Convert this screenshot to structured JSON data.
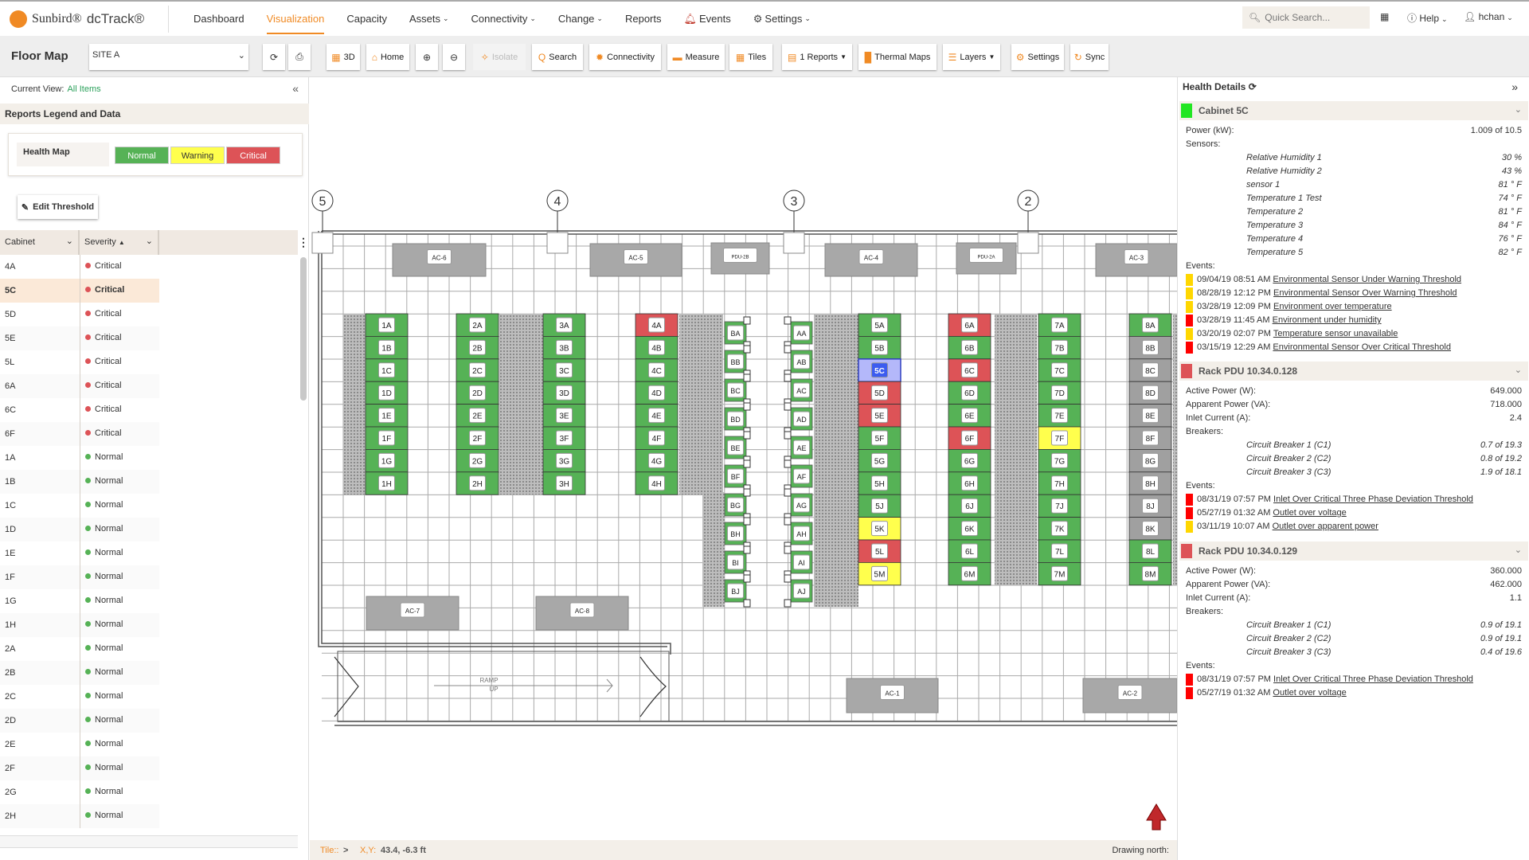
{
  "app": {
    "brand": "Sunbird®",
    "product": "dcTrack®"
  },
  "nav": {
    "items": [
      {
        "label": "Dashboard"
      },
      {
        "label": "Visualization",
        "active": true
      },
      {
        "label": "Capacity"
      },
      {
        "label": "Assets",
        "dropdown": true
      },
      {
        "label": "Connectivity",
        "dropdown": true
      },
      {
        "label": "Change",
        "dropdown": true
      },
      {
        "label": "Reports"
      },
      {
        "label": "Events",
        "icon": "bell-icon"
      },
      {
        "label": "Settings",
        "icon": "gear-icon",
        "dropdown": true
      }
    ],
    "quick_search_placeholder": "Quick Search...",
    "help": "Help",
    "user": "hchan"
  },
  "toolbar": {
    "title": "Floor Map",
    "site": "SITE A",
    "buttons": [
      {
        "label": "",
        "icon": "refresh-icon"
      },
      {
        "label": "",
        "icon": "print-icon"
      },
      {
        "label": "3D",
        "icon": "cube-icon"
      },
      {
        "label": "Home",
        "icon": "home-icon"
      },
      {
        "label": "",
        "icon": "zoom-in-icon"
      },
      {
        "label": "",
        "icon": "zoom-out-icon"
      },
      {
        "label": "Isolate",
        "icon": "isolate-icon",
        "disabled": true
      },
      {
        "label": "Search",
        "icon": "search-icon"
      },
      {
        "label": "Connectivity",
        "icon": "connectivity-icon"
      },
      {
        "label": "Measure",
        "icon": "measure-icon"
      },
      {
        "label": "Tiles",
        "icon": "tiles-icon"
      },
      {
        "label": "1 Reports",
        "icon": "report-icon",
        "dropdown": true
      },
      {
        "label": "Thermal Maps",
        "icon": "thermal-icon"
      },
      {
        "label": "Layers",
        "icon": "layers-icon",
        "dropdown": true
      },
      {
        "label": "Settings",
        "icon": "gear-icon"
      },
      {
        "label": "Sync",
        "icon": "sync-icon"
      }
    ]
  },
  "left": {
    "current_view_label": "Current View:",
    "current_view": "All Items",
    "legend_title": "Reports Legend and Data",
    "health_map": "Health Map",
    "legend": [
      {
        "label": "Normal",
        "color": "#56b256"
      },
      {
        "label": "Warning",
        "color": "#ffff4d"
      },
      {
        "label": "Critical",
        "color": "#dd5357"
      }
    ],
    "edit_threshold": "Edit Threshold",
    "columns": [
      "Cabinet",
      "Severity"
    ],
    "rows": [
      [
        "4A",
        "Critical"
      ],
      [
        "5C",
        "Critical"
      ],
      [
        "5D",
        "Critical"
      ],
      [
        "5E",
        "Critical"
      ],
      [
        "5L",
        "Critical"
      ],
      [
        "6A",
        "Critical"
      ],
      [
        "6C",
        "Critical"
      ],
      [
        "6F",
        "Critical"
      ],
      [
        "1A",
        "Normal"
      ],
      [
        "1B",
        "Normal"
      ],
      [
        "1C",
        "Normal"
      ],
      [
        "1D",
        "Normal"
      ],
      [
        "1E",
        "Normal"
      ],
      [
        "1F",
        "Normal"
      ],
      [
        "1G",
        "Normal"
      ],
      [
        "1H",
        "Normal"
      ],
      [
        "2A",
        "Normal"
      ],
      [
        "2B",
        "Normal"
      ],
      [
        "2C",
        "Normal"
      ],
      [
        "2D",
        "Normal"
      ],
      [
        "2E",
        "Normal"
      ],
      [
        "2F",
        "Normal"
      ],
      [
        "2G",
        "Normal"
      ],
      [
        "2H",
        "Normal"
      ]
    ],
    "selected_row": "5C"
  },
  "colors": {
    "normal": "#56b256",
    "critical": "#dd5357",
    "warning": "#ffff4d",
    "unknown": "#a0a0a0",
    "selected": "#b4b8fa",
    "accent": "#f08a24"
  },
  "floor_map": {
    "column_markers": [
      "5",
      "4",
      "3",
      "2"
    ],
    "cabinet_rows": [
      {
        "labels": [
          "1A",
          "1B",
          "1C",
          "1D",
          "1E",
          "1F",
          "1G",
          "1H"
        ],
        "status": [
          "normal",
          "normal",
          "normal",
          "normal",
          "normal",
          "normal",
          "normal",
          "normal"
        ]
      },
      {
        "labels": [
          "2A",
          "2B",
          "2C",
          "2D",
          "2E",
          "2F",
          "2G",
          "2H"
        ],
        "status": [
          "normal",
          "normal",
          "normal",
          "normal",
          "normal",
          "normal",
          "normal",
          "normal"
        ]
      },
      {
        "labels": [
          "3A",
          "3B",
          "3C",
          "3D",
          "3E",
          "3F",
          "3G",
          "3H"
        ],
        "status": [
          "normal",
          "normal",
          "normal",
          "normal",
          "normal",
          "normal",
          "normal",
          "normal"
        ]
      },
      {
        "labels": [
          "4A",
          "4B",
          "4C",
          "4D",
          "4E",
          "4F",
          "4G",
          "4H"
        ],
        "status": [
          "critical",
          "normal",
          "normal",
          "normal",
          "normal",
          "normal",
          "normal",
          "normal"
        ]
      },
      {
        "labels": [
          "5A",
          "5B",
          "5C",
          "5D",
          "5E",
          "5F",
          "5G",
          "5H",
          "5J",
          "5K",
          "5L",
          "5M"
        ],
        "status": [
          "normal",
          "normal",
          "selected",
          "critical",
          "critical",
          "normal",
          "normal",
          "normal",
          "normal",
          "warning",
          "critical",
          "warning"
        ]
      },
      {
        "labels": [
          "6A",
          "6B",
          "6C",
          "6D",
          "6E",
          "6F",
          "6G",
          "6H",
          "6J",
          "6K",
          "6L",
          "6M"
        ],
        "status": [
          "critical",
          "normal",
          "critical",
          "normal",
          "normal",
          "critical",
          "normal",
          "normal",
          "normal",
          "normal",
          "normal",
          "normal"
        ]
      },
      {
        "labels": [
          "7A",
          "7B",
          "7C",
          "7D",
          "7E",
          "7F",
          "7G",
          "7H",
          "7J",
          "7K",
          "7L",
          "7M"
        ],
        "status": [
          "normal",
          "normal",
          "normal",
          "normal",
          "normal",
          "warning",
          "normal",
          "normal",
          "normal",
          "normal",
          "normal",
          "normal"
        ]
      },
      {
        "labels": [
          "8A",
          "8B",
          "8C",
          "8D",
          "8E",
          "8F",
          "8G",
          "8H",
          "8J",
          "8K",
          "8L",
          "8M"
        ],
        "status": [
          "normal",
          "unknown",
          "unknown",
          "unknown",
          "unknown",
          "unknown",
          "unknown",
          "unknown",
          "unknown",
          "unknown",
          "normal",
          "normal"
        ]
      }
    ],
    "pdu_rows": [
      {
        "labels": [
          "BA",
          "BB",
          "BC",
          "BD",
          "BE",
          "BF",
          "BG",
          "BH",
          "BI",
          "BJ"
        ],
        "status": "normal"
      },
      {
        "labels": [
          "AA",
          "AB",
          "AC",
          "AD",
          "AE",
          "AF",
          "AG",
          "AH",
          "AI",
          "AJ"
        ],
        "status": "normal"
      }
    ],
    "units": [
      "AC-6",
      "AC-5",
      "PDU-2B",
      "AC-4",
      "PDU-2A",
      "AC-3",
      "AC-7",
      "AC-8",
      "AC-1",
      "AC-2"
    ],
    "ramp": [
      "RAMP",
      "UP"
    ]
  },
  "status_bar": {
    "tile_label": "Tile::",
    "tile_value": ">",
    "xy_label": "X,Y:",
    "xy_value": "43.4, -6.3 ft",
    "north_label": "Drawing north:"
  },
  "health": {
    "title": "Health Details",
    "cabinet": {
      "name": "Cabinet 5C",
      "color": "#22e622",
      "power_label": "Power (kW):",
      "power": "1.009 of 10.5",
      "sensors_label": "Sensors:",
      "sensors": [
        [
          "Relative Humidity 1",
          "30 %"
        ],
        [
          "Relative Humidity 2",
          "43 %"
        ],
        [
          "sensor 1",
          "81 ° F"
        ],
        [
          "Temperature 1 Test",
          "74 ° F"
        ],
        [
          "Temperature 2",
          "81 ° F"
        ],
        [
          "Temperature 3",
          "84 ° F"
        ],
        [
          "Temperature 4",
          "76 ° F"
        ],
        [
          "Temperature 5",
          "82 ° F"
        ]
      ],
      "events_label": "Events:",
      "events": [
        {
          "sev": "warning",
          "time": "09/04/19 08:51 AM",
          "text": "Environmental Sensor Under Warning Threshold"
        },
        {
          "sev": "warning",
          "time": "08/28/19 12:12 PM",
          "text": "Environmental Sensor Over Warning Threshold"
        },
        {
          "sev": "warning",
          "time": "03/28/19 12:09 PM",
          "text": "Environment over temperature"
        },
        {
          "sev": "critical",
          "time": "03/28/19 11:45 AM",
          "text": "Environment under humidity"
        },
        {
          "sev": "warning",
          "time": "03/20/19 02:07 PM",
          "text": "Temperature sensor unavailable"
        },
        {
          "sev": "critical",
          "time": "03/15/19 12:29 AM",
          "text": "Environmental Sensor Over Critical Threshold"
        }
      ]
    },
    "pdus": [
      {
        "name": "Rack PDU 10.34.0.128",
        "color": "#dd5357",
        "fields": [
          [
            "Active Power (W):",
            "649.000"
          ],
          [
            "Apparent Power (VA):",
            "718.000"
          ],
          [
            "Inlet Current (A):",
            "2.4"
          ]
        ],
        "breakers_label": "Breakers:",
        "breakers": [
          [
            "Circuit Breaker 1 (C1)",
            "0.7 of 19.3"
          ],
          [
            "Circuit Breaker 2 (C2)",
            "0.8 of 19.2"
          ],
          [
            "Circuit Breaker 3 (C3)",
            "1.9 of 18.1"
          ]
        ],
        "events_label": "Events:",
        "events": [
          {
            "sev": "critical",
            "time": "08/31/19 07:57 PM",
            "text": "Inlet Over Critical Three Phase Deviation Threshold"
          },
          {
            "sev": "critical",
            "time": "05/27/19 01:32 AM",
            "text": "Outlet over voltage"
          },
          {
            "sev": "warning",
            "time": "03/11/19 10:07 AM",
            "text": "Outlet over apparent power"
          }
        ]
      },
      {
        "name": "Rack PDU 10.34.0.129",
        "color": "#dd5357",
        "fields": [
          [
            "Active Power (W):",
            "360.000"
          ],
          [
            "Apparent Power (VA):",
            "462.000"
          ],
          [
            "Inlet Current (A):",
            "1.1"
          ]
        ],
        "breakers_label": "Breakers:",
        "breakers": [
          [
            "Circuit Breaker 1 (C1)",
            "0.9 of 19.1"
          ],
          [
            "Circuit Breaker 2 (C2)",
            "0.9 of 19.1"
          ],
          [
            "Circuit Breaker 3 (C3)",
            "0.4 of 19.6"
          ]
        ],
        "events_label": "Events:",
        "events": [
          {
            "sev": "critical",
            "time": "08/31/19 07:57 PM",
            "text": "Inlet Over Critical Three Phase Deviation Threshold"
          },
          {
            "sev": "critical",
            "time": "05/27/19 01:32 AM",
            "text": "Outlet over voltage"
          }
        ]
      }
    ],
    "event_colors": {
      "warning": "#ffd700",
      "critical": "#ff0000"
    }
  }
}
